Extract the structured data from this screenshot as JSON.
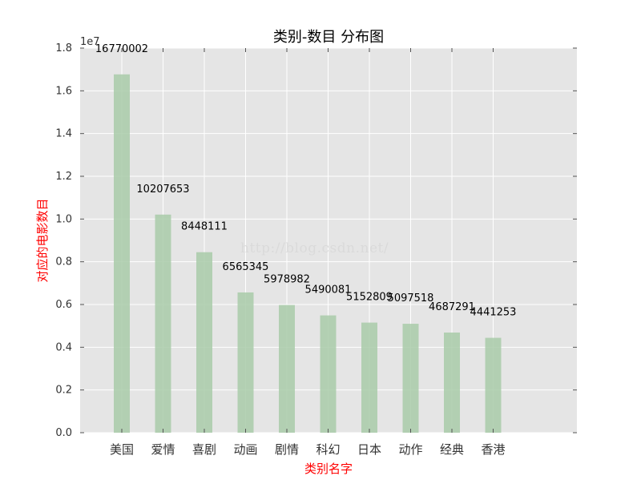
{
  "chart_data": {
    "type": "bar",
    "title": "类别-数目 分布图",
    "xlabel": "类别名字",
    "ylabel": "对应的电影数目",
    "y_multiplier_label": "1e7",
    "categories": [
      "美国",
      "爱情",
      "喜剧",
      "动画",
      "剧情",
      "科幻",
      "日本",
      "动作",
      "经典",
      "香港"
    ],
    "values": [
      16770002,
      10207653,
      8448111,
      6565345,
      5978982,
      5490081,
      5152809,
      5097518,
      4687291,
      4441253
    ],
    "value_labels": [
      "16770002",
      "10207653",
      "8448111",
      "6565345",
      "5978982",
      "5490081",
      "5152809",
      "5097518",
      "4687291",
      "4441253"
    ],
    "ylim": [
      0,
      18000000
    ],
    "yticks": [
      0,
      2000000,
      4000000,
      6000000,
      8000000,
      10000000,
      12000000,
      14000000,
      16000000,
      18000000
    ],
    "ytick_labels": [
      "0.0",
      "0.2",
      "0.4",
      "0.6",
      "0.8",
      "1.0",
      "1.2",
      "1.4",
      "1.6",
      "1.8"
    ],
    "grid": true,
    "colors": {
      "plot_background": "#e5e5e5",
      "grid": "#ffffff",
      "bar": "#a9cba9",
      "axis_label": "#ff0000",
      "text": "#333333"
    }
  },
  "watermark": "http://blog.csdn.net/"
}
